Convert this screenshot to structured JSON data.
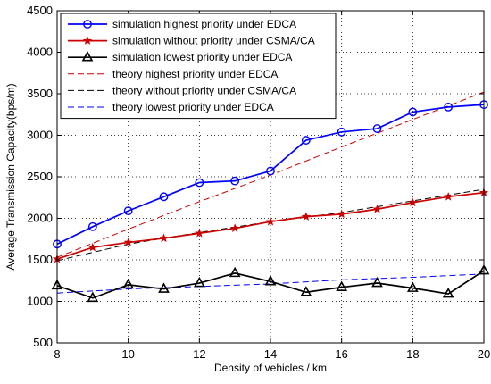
{
  "chart_data": {
    "type": "line",
    "title": "",
    "xlabel": "Density of vehicles / km",
    "ylabel": "Average Transmission Capacity(bps/m)",
    "xlim": [
      8,
      20
    ],
    "ylim": [
      500,
      4500
    ],
    "xticks": [
      8,
      10,
      12,
      14,
      16,
      18,
      20
    ],
    "yticks": [
      500,
      1000,
      1500,
      2000,
      2500,
      3000,
      3500,
      4000,
      4500
    ],
    "grid": true,
    "legend_position": "top-left",
    "series": [
      {
        "name": "simulation highest priority under EDCA",
        "color": "#0000ff",
        "line_style": "solid",
        "marker": "circle",
        "x": [
          8,
          9,
          10,
          11,
          12,
          13,
          14,
          15,
          16,
          17,
          18,
          19,
          20
        ],
        "values": [
          1690,
          1900,
          2090,
          2260,
          2430,
          2450,
          2570,
          2940,
          3040,
          3080,
          3280,
          3340,
          3370
        ]
      },
      {
        "name": "simulation without priority under CSMA/CA",
        "color": "#cc0000",
        "line_style": "solid",
        "marker": "star",
        "x": [
          8,
          9,
          10,
          11,
          12,
          13,
          14,
          15,
          16,
          17,
          18,
          19,
          20
        ],
        "values": [
          1510,
          1650,
          1710,
          1760,
          1820,
          1880,
          1960,
          2020,
          2050,
          2110,
          2190,
          2260,
          2310
        ]
      },
      {
        "name": "simulation lowest priority under EDCA",
        "color": "#000000",
        "line_style": "solid",
        "marker": "triangle",
        "x": [
          8,
          9,
          10,
          11,
          12,
          13,
          14,
          15,
          16,
          17,
          18,
          19,
          20
        ],
        "values": [
          1190,
          1040,
          1200,
          1150,
          1220,
          1340,
          1240,
          1110,
          1170,
          1220,
          1160,
          1090,
          1370
        ]
      },
      {
        "name": "theory highest priority under EDCA",
        "color": "#cc0000",
        "line_style": "dashed",
        "marker": "none",
        "x": [
          8,
          10,
          12,
          14,
          16,
          18,
          20
        ],
        "values": [
          1530,
          1870,
          2200,
          2520,
          2860,
          3190,
          3520
        ]
      },
      {
        "name": "theory without priority under CSMA/CA",
        "color": "#000000",
        "line_style": "dashed",
        "marker": "none",
        "x": [
          8,
          10,
          12,
          14,
          16,
          18,
          20
        ],
        "values": [
          1490,
          1690,
          1830,
          1960,
          2070,
          2210,
          2350
        ]
      },
      {
        "name": "theory lowest priority under EDCA",
        "color": "#0000ff",
        "line_style": "dashed",
        "marker": "none",
        "x": [
          8,
          10,
          12,
          14,
          16,
          18,
          20
        ],
        "values": [
          1100,
          1150,
          1180,
          1210,
          1260,
          1290,
          1330
        ]
      }
    ]
  }
}
